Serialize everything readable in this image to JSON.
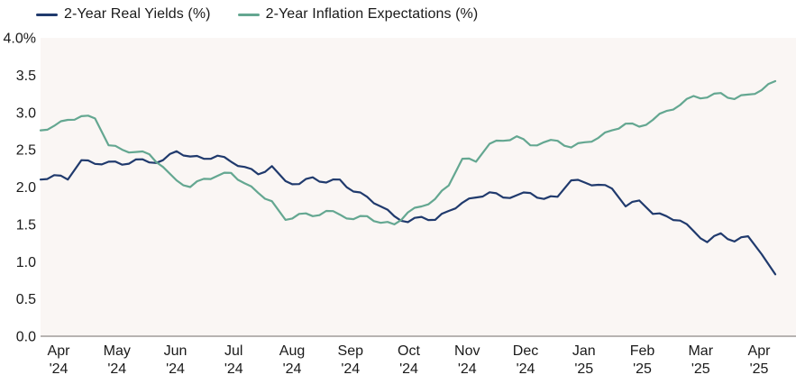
{
  "chart_data": {
    "type": "line",
    "title": "",
    "grid": false,
    "legend_position": "top-left",
    "x_range_note": "weekly observations, Apr 2024 through mid-Apr 2025",
    "x_tick_labels": [
      [
        "Apr",
        "'24"
      ],
      [
        "May",
        "'24"
      ],
      [
        "Jun",
        "'24"
      ],
      [
        "Jul",
        "'24"
      ],
      [
        "Aug",
        "'24"
      ],
      [
        "Sep",
        "'24"
      ],
      [
        "Oct",
        "'24"
      ],
      [
        "Nov",
        "'24"
      ],
      [
        "Dec",
        "'24"
      ],
      [
        "Jan",
        "'25"
      ],
      [
        "Feb",
        "'25"
      ],
      [
        "Mar",
        "'25"
      ],
      [
        "Apr",
        "'25"
      ]
    ],
    "y_tick_labels": [
      "4.0%",
      "3.5",
      "3.0",
      "2.5",
      "2.0",
      "1.5",
      "1.0",
      "0.5",
      "0.0"
    ],
    "y_tick_values": [
      4.0,
      3.5,
      3.0,
      2.5,
      2.0,
      1.5,
      1.0,
      0.5,
      0.0
    ],
    "ylim": [
      0.0,
      4.0
    ],
    "colors": {
      "plot_background": "#faf6f4",
      "axis_line": "#b7b3b1",
      "text": "#1a1a1a"
    },
    "series": [
      {
        "name": "2-Year Real Yields (%)",
        "color": "#203a6d",
        "values": [
          2.1,
          2.16,
          2.1,
          2.36,
          2.31,
          2.34,
          2.3,
          2.37,
          2.33,
          2.36,
          2.48,
          2.41,
          2.38,
          2.42,
          2.34,
          2.27,
          2.17,
          2.28,
          2.08,
          2.04,
          2.13,
          2.06,
          2.1,
          1.94,
          1.87,
          1.74,
          1.61,
          1.53,
          1.6,
          1.56,
          1.68,
          1.79,
          1.86,
          1.93,
          1.86,
          1.89,
          1.92,
          1.84,
          1.87,
          2.09,
          2.06,
          2.03,
          1.98,
          1.74,
          1.82,
          1.64,
          1.61,
          1.55,
          1.41,
          1.26,
          1.38,
          1.27,
          1.34,
          1.1,
          0.83
        ]
      },
      {
        "name": "2-Year Inflation Expectations (%)",
        "color": "#64a791",
        "values": [
          2.76,
          2.82,
          2.9,
          2.95,
          2.92,
          2.56,
          2.5,
          2.47,
          2.44,
          2.27,
          2.09,
          2.0,
          2.11,
          2.15,
          2.19,
          2.05,
          1.92,
          1.81,
          1.56,
          1.64,
          1.61,
          1.68,
          1.63,
          1.57,
          1.61,
          1.52,
          1.5,
          1.66,
          1.74,
          1.84,
          2.02,
          2.38,
          2.34,
          2.58,
          2.62,
          2.68,
          2.56,
          2.6,
          2.62,
          2.53,
          2.6,
          2.66,
          2.76,
          2.85,
          2.81,
          2.9,
          3.02,
          3.1,
          3.22,
          3.2,
          3.26,
          3.18,
          3.24,
          3.3,
          3.42
        ]
      }
    ]
  }
}
